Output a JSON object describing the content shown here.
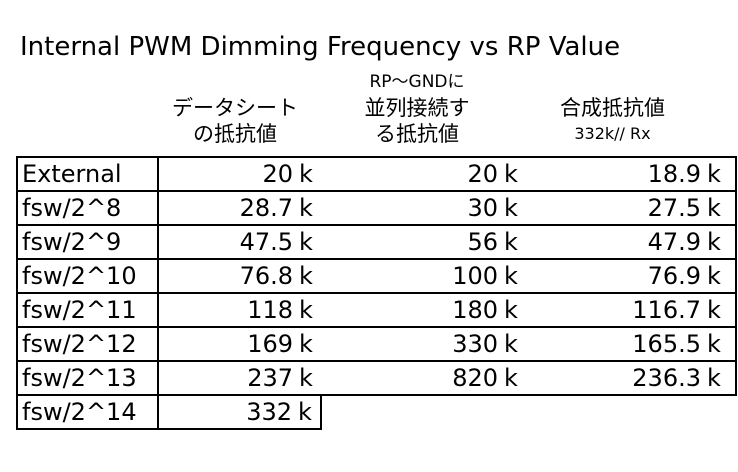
{
  "title": "Internal PWM Dimming Frequency vs RP Value",
  "headers": {
    "col1_line1": "データシート",
    "col1_line2": "の抵抗値",
    "col2_line1": "RP〜GNDに",
    "col2_line2": "並列接続す",
    "col2_line3": "る抵抗値",
    "col3_line1": "合成抵抗値",
    "col3_line2": "332k// Rx"
  },
  "unit": "k",
  "rows": [
    {
      "label": "External",
      "datasheet": "20",
      "parallel": "20",
      "combined": "18.9"
    },
    {
      "label": "fsw/2^8",
      "datasheet": "28.7",
      "parallel": "30",
      "combined": "27.5"
    },
    {
      "label": "fsw/2^9",
      "datasheet": "47.5",
      "parallel": "56",
      "combined": "47.9"
    },
    {
      "label": "fsw/2^10",
      "datasheet": "76.8",
      "parallel": "100",
      "combined": "76.9"
    },
    {
      "label": "fsw/2^11",
      "datasheet": "118",
      "parallel": "180",
      "combined": "116.7"
    },
    {
      "label": "fsw/2^12",
      "datasheet": "169",
      "parallel": "330",
      "combined": "165.5"
    },
    {
      "label": "fsw/2^13",
      "datasheet": "237",
      "parallel": "820",
      "combined": "236.3"
    },
    {
      "label": "fsw/2^14",
      "datasheet": "332",
      "parallel": "",
      "combined": ""
    }
  ]
}
